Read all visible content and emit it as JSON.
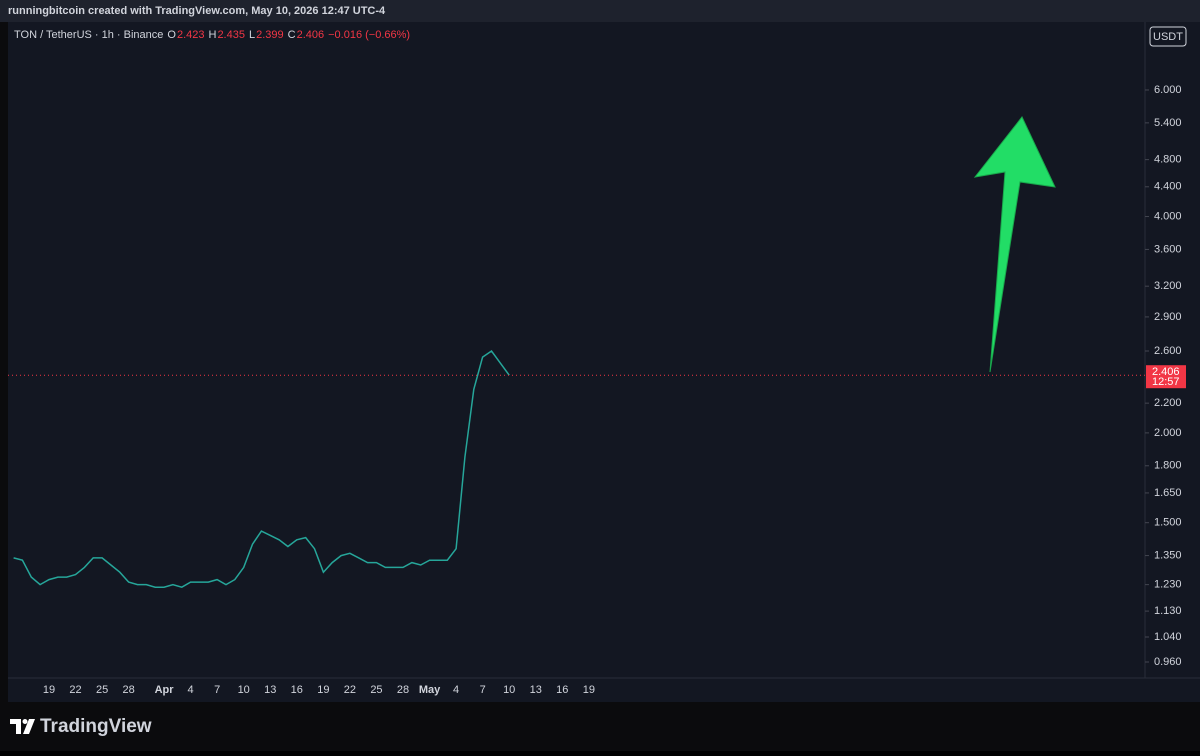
{
  "header": "runningbitcoin created with TradingView.com, May 10, 2026 12:47 UTC-4",
  "footer": {
    "brand": "TradingView"
  },
  "chart_data": {
    "type": "line",
    "legend": {
      "symbol": "TON / TetherUS · 1h · Binance",
      "o_label": "O",
      "open": "2.423",
      "h_label": "H",
      "high": "2.435",
      "l_label": "L",
      "low": "2.399",
      "c_label": "C",
      "close": "2.406",
      "change": "−0.016 (−0.66%)"
    },
    "currency": "USDT",
    "countdown": "12:57",
    "log_scale": true,
    "color": "#26a69a",
    "categories": [
      null,
      null,
      null,
      null,
      "19",
      null,
      null,
      "22",
      null,
      null,
      "25",
      null,
      null,
      "28",
      null,
      null,
      null,
      "Apr",
      null,
      null,
      "4",
      null,
      null,
      "7",
      null,
      null,
      "10",
      null,
      null,
      "13",
      null,
      null,
      "16",
      null,
      null,
      "19",
      null,
      null,
      "22",
      null,
      null,
      "25",
      null,
      null,
      "28",
      null,
      null,
      "May",
      null,
      null,
      "4",
      null,
      null,
      "7",
      null,
      null,
      "10",
      null,
      null,
      "13",
      null,
      null,
      "16",
      null,
      null,
      "19"
    ],
    "values": [
      1.34,
      1.33,
      1.26,
      1.23,
      1.25,
      1.26,
      1.26,
      1.27,
      1.3,
      1.34,
      1.34,
      1.31,
      1.28,
      1.24,
      1.23,
      1.23,
      1.22,
      1.22,
      1.23,
      1.22,
      1.24,
      1.24,
      1.24,
      1.25,
      1.23,
      1.25,
      1.3,
      1.4,
      1.46,
      1.44,
      1.42,
      1.39,
      1.42,
      1.43,
      1.38,
      1.28,
      1.32,
      1.35,
      1.36,
      1.34,
      1.32,
      1.32,
      1.3,
      1.3,
      1.3,
      1.32,
      1.31,
      1.33,
      1.33,
      1.33,
      1.38,
      1.85,
      2.3,
      2.55,
      2.6,
      2.5,
      2.406,
      null,
      null,
      null,
      null,
      null,
      null,
      null,
      null,
      null
    ],
    "ylim": [
      0.912,
      7.46
    ],
    "yticks": [
      {
        "value": 0.96,
        "label": "0.960"
      },
      {
        "value": 1.04,
        "label": "1.040"
      },
      {
        "value": 1.13,
        "label": "1.130"
      },
      {
        "value": 1.23,
        "label": "1.230"
      },
      {
        "value": 1.35,
        "label": "1.350"
      },
      {
        "value": 1.5,
        "label": "1.500"
      },
      {
        "value": 1.65,
        "label": "1.650"
      },
      {
        "value": 1.8,
        "label": "1.800"
      },
      {
        "value": 2,
        "label": "2.000"
      },
      {
        "value": 2.2,
        "label": "2.200"
      },
      {
        "value": 2.6,
        "label": "2.600"
      },
      {
        "value": 2.9,
        "label": "2.900"
      },
      {
        "value": 3.2,
        "label": "3.200"
      },
      {
        "value": 3.6,
        "label": "3.600"
      },
      {
        "value": 4,
        "label": "4.000"
      },
      {
        "value": 4.4,
        "label": "4.400"
      },
      {
        "value": 4.8,
        "label": "4.800"
      },
      {
        "value": 5.4,
        "label": "5.400"
      },
      {
        "value": 6,
        "label": "6.000"
      }
    ],
    "last_price": 2.406
  }
}
